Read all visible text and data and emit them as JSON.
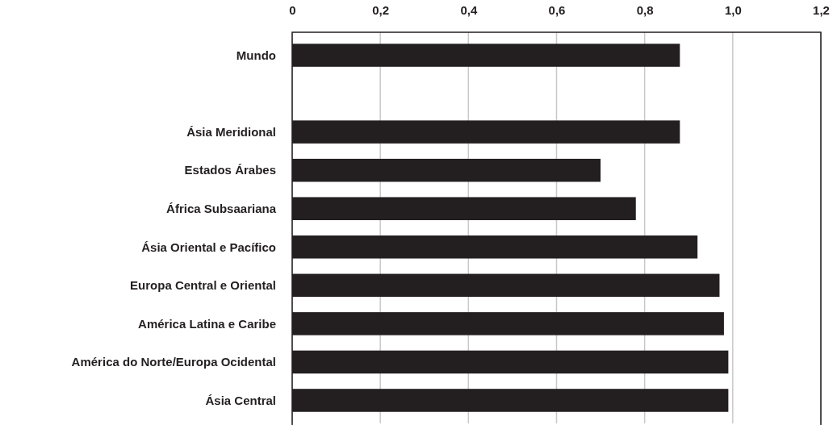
{
  "chart_data": {
    "type": "bar",
    "orientation": "horizontal",
    "categories": [
      "Mundo",
      null,
      "Ásia Meridional",
      "Estados Árabes",
      "África Subsaariana",
      "Ásia Oriental e Pacífico",
      "Europa Central e Oriental",
      "América Latina e Caribe",
      "América do Norte/Europa Ocidental",
      "Ásia Central"
    ],
    "values": [
      0.88,
      null,
      0.88,
      0.7,
      0.78,
      0.92,
      0.97,
      0.98,
      0.99,
      0.99
    ],
    "color": "#231f20",
    "xlim": [
      0,
      1.2
    ],
    "xticks": [
      0,
      {
        "value": 0.2,
        "label": "0,2"
      },
      {
        "value": 0.4,
        "label": "0,4"
      },
      {
        "value": 0.6,
        "label": "0,6"
      },
      {
        "value": 0.8,
        "label": "0,8"
      },
      {
        "value": 1.0,
        "label": "1,0"
      },
      {
        "value": 1.2,
        "label": "1,2"
      }
    ],
    "grid": "x"
  }
}
